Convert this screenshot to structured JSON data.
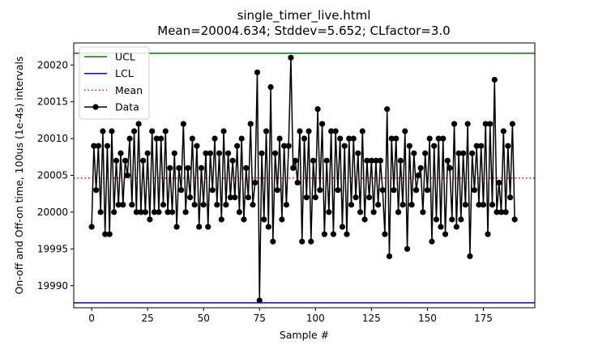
{
  "chart_data": {
    "type": "line",
    "title": "single_timer_live.html",
    "subtitle": "Mean=20004.634; Stddev=5.652; CLfactor=3.0",
    "xlabel": "Sample #",
    "ylabel": "On-off and Off-on time, 100us (1e-4s) intervals",
    "xlim": [
      -8,
      198
    ],
    "ylim": [
      19987,
      20023
    ],
    "x_ticks": [
      0,
      25,
      50,
      75,
      100,
      125,
      150,
      175
    ],
    "y_ticks": [
      19990,
      19995,
      20000,
      20005,
      20010,
      20015,
      20020
    ],
    "grid": false,
    "legend_position": "top-left",
    "control_lines": [
      {
        "name": "UCL",
        "value": 20021.59,
        "color": "#008000",
        "style": "solid"
      },
      {
        "name": "LCL",
        "value": 19987.68,
        "color": "#0000ff",
        "style": "solid"
      },
      {
        "name": "Mean",
        "value": 20004.634,
        "color": "#ff0000",
        "style": "dotted"
      }
    ],
    "series": [
      {
        "name": "Data",
        "color": "#000000",
        "marker": "circle",
        "x_start": 0,
        "values": [
          19998,
          20009,
          20003,
          20009,
          20000,
          20011,
          19997,
          20009,
          19997,
          20011,
          20000,
          20007,
          20001,
          20008,
          20001,
          20007,
          20005,
          20010,
          20001,
          20011,
          20000,
          20012,
          20000,
          20007,
          20000,
          20008,
          19999,
          20011,
          20000,
          20010,
          20000,
          20010,
          20001,
          20011,
          20000,
          20006,
          20000,
          20008,
          19998,
          20006,
          20003,
          20012,
          20000,
          20006,
          20002,
          20010,
          20001,
          20009,
          19998,
          20006,
          20001,
          20008,
          19998,
          20008,
          20003,
          20010,
          20001,
          20008,
          19999,
          20011,
          20001,
          20008,
          20002,
          20007,
          20002,
          20009,
          20000,
          20010,
          19999,
          20006,
          20002,
          20012,
          20001,
          20004,
          20019,
          19988,
          20008,
          19999,
          20011,
          19998,
          20017,
          19996,
          20008,
          20003,
          20010,
          19999,
          20009,
          20001,
          20009,
          20021,
          20006,
          20007,
          20004,
          20011,
          19996,
          20010,
          20002,
          20011,
          19996,
          20007,
          20002,
          20014,
          20003,
          20012,
          19997,
          20007,
          20000,
          20011,
          19997,
          20011,
          20003,
          20010,
          19998,
          20009,
          19997,
          20010,
          20001,
          20010,
          20002,
          20008,
          20000,
          20011,
          19999,
          20007,
          20002,
          20007,
          20000,
          20007,
          20001,
          20007,
          20003,
          19997,
          20014,
          19994,
          20010,
          20003,
          20010,
          20000,
          20007,
          20001,
          20011,
          19995,
          20009,
          20001,
          20008,
          20003,
          20005,
          20006,
          20000,
          20008,
          20003,
          20010,
          19996,
          20009,
          19999,
          20010,
          19998,
          20010,
          19997,
          20007,
          20006,
          19999,
          20012,
          19998,
          20008,
          19999,
          20008,
          20001,
          20012,
          19994,
          20008,
          20003,
          20009,
          20001,
          20009,
          20001,
          20012,
          19997,
          20012,
          20001,
          20018,
          20000,
          20004,
          20000,
          20011,
          20000,
          20009,
          20002,
          20012,
          19999
        ]
      }
    ]
  }
}
